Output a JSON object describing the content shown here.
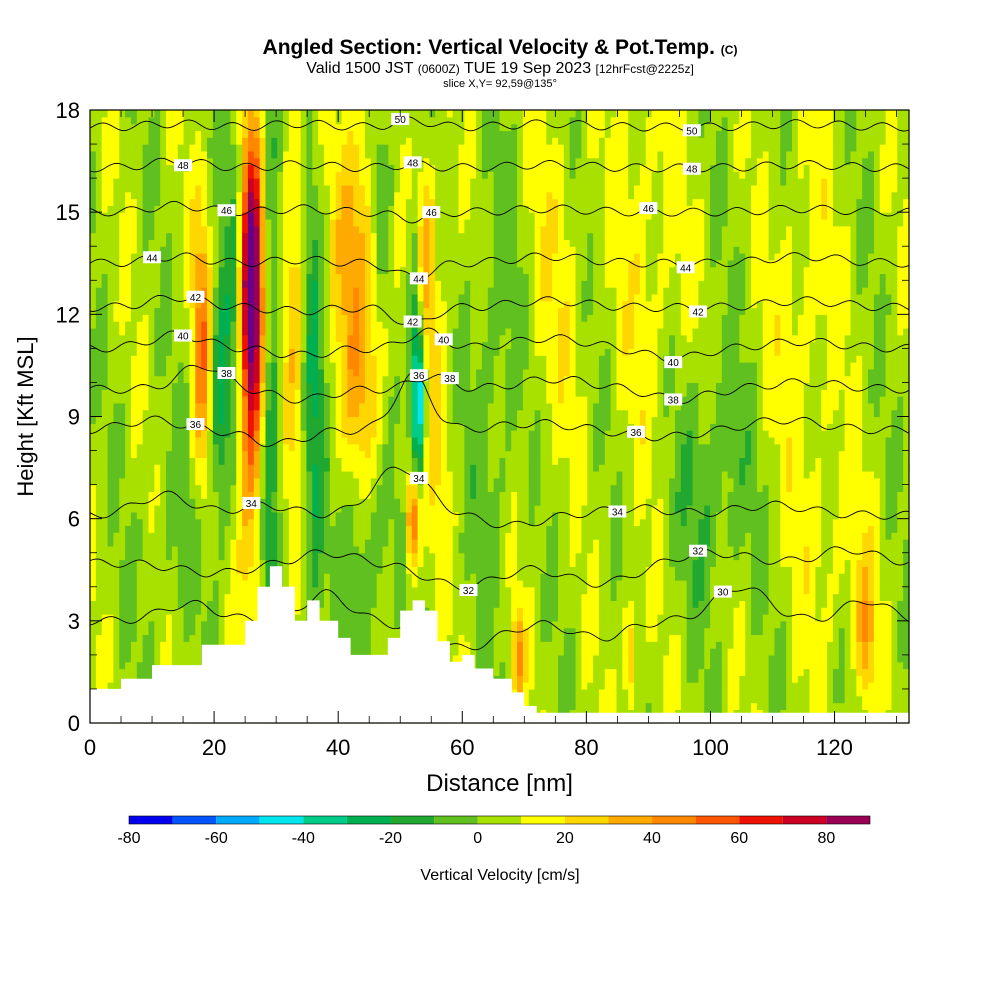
{
  "header": {
    "title": "Angled Section: Vertical Velocity & Pot.Temp.",
    "title_tag": "(C)",
    "valid_prefix": "Valid 1500 JST",
    "valid_utc": "(0600Z)",
    "valid_date": "TUE 19 Sep 2023",
    "forecast_info": "[12hrFcst@2225z]",
    "slice_info": "slice X,Y= 92,59@135°"
  },
  "chart_data": {
    "type": "heatmap",
    "xlabel": "Distance [nm]",
    "ylabel": "Height [Kft MSL]",
    "xlim": [
      0,
      132
    ],
    "ylim": [
      0,
      18
    ],
    "x_ticks": [
      0,
      20,
      40,
      60,
      80,
      100,
      120
    ],
    "y_ticks": [
      0,
      3,
      6,
      9,
      12,
      15,
      18
    ],
    "colorbar": {
      "label": "Vertical Velocity [cm/s]",
      "boundaries": [
        -80,
        -70,
        -60,
        -50,
        -40,
        -30,
        -20,
        -10,
        0,
        10,
        20,
        30,
        40,
        50,
        60,
        70,
        80,
        90
      ],
      "tick_labels": [
        -80,
        -60,
        -40,
        -20,
        0,
        20,
        40,
        60,
        80
      ],
      "colors": [
        "#0000ee",
        "#0055ff",
        "#00aaff",
        "#00e5ee",
        "#00cc88",
        "#00b050",
        "#20a830",
        "#60c020",
        "#a8e000",
        "#ffff00",
        "#ffd700",
        "#ffaa00",
        "#ff8800",
        "#ff5500",
        "#ee1100",
        "#cc0022",
        "#990055",
        "#660088"
      ]
    },
    "background_value": 5,
    "velocity_features": [
      {
        "center_x": 26,
        "center_y": 13.0,
        "width_x": 1.8,
        "height_y": 4.0,
        "value": 75
      },
      {
        "center_x": 26,
        "center_y": 10.0,
        "width_x": 2.5,
        "height_y": 6.0,
        "value": 45
      },
      {
        "center_x": 18,
        "center_y": 11.0,
        "width_x": 1.5,
        "height_y": 4.0,
        "value": 40
      },
      {
        "center_x": 21,
        "center_y": 9.5,
        "width_x": 1.5,
        "height_y": 3.5,
        "value": -35
      },
      {
        "center_x": 23.5,
        "center_y": 12.0,
        "width_x": 1.5,
        "height_y": 6.0,
        "value": -25
      },
      {
        "center_x": 29,
        "center_y": 10.0,
        "width_x": 1.8,
        "height_y": 8.0,
        "value": -30
      },
      {
        "center_x": 33,
        "center_y": 13.0,
        "width_x": 2.0,
        "height_y": 6.0,
        "value": 25
      },
      {
        "center_x": 36,
        "center_y": 9.0,
        "width_x": 1.8,
        "height_y": 9.0,
        "value": -25
      },
      {
        "center_x": 43,
        "center_y": 14.5,
        "width_x": 3.5,
        "height_y": 4.0,
        "value": 30
      },
      {
        "center_x": 44,
        "center_y": 10.0,
        "width_x": 4.0,
        "height_y": 3.0,
        "value": 20
      },
      {
        "center_x": 47,
        "center_y": 16.0,
        "width_x": 1.8,
        "height_y": 3.0,
        "value": -20
      },
      {
        "center_x": 53,
        "center_y": 9.5,
        "width_x": 1.0,
        "height_y": 2.2,
        "value": -50
      },
      {
        "center_x": 52.5,
        "center_y": 11.5,
        "width_x": 1.2,
        "height_y": 3.5,
        "value": -30
      },
      {
        "center_x": 52,
        "center_y": 6.0,
        "width_x": 1.0,
        "height_y": 1.5,
        "value": 55
      },
      {
        "center_x": 54,
        "center_y": 14.0,
        "width_x": 1.5,
        "height_y": 3.0,
        "value": 30
      },
      {
        "center_x": 56,
        "center_y": 10.0,
        "width_x": 2.5,
        "height_y": 5.0,
        "value": 15
      },
      {
        "center_x": 65,
        "center_y": 10.0,
        "width_x": 4.0,
        "height_y": 6.0,
        "value": -12
      },
      {
        "center_x": 75,
        "center_y": 13.0,
        "width_x": 5.0,
        "height_y": 5.0,
        "value": 10
      },
      {
        "center_x": 90,
        "center_y": 14.0,
        "width_x": 5.0,
        "height_y": 6.0,
        "value": 12
      },
      {
        "center_x": 100,
        "center_y": 7.0,
        "width_x": 6.0,
        "height_y": 3.5,
        "value": -15
      },
      {
        "center_x": 115,
        "center_y": 12.0,
        "width_x": 5.0,
        "height_y": 5.0,
        "value": 12
      },
      {
        "center_x": 13,
        "center_y": 5.0,
        "width_x": 5.0,
        "height_y": 3.0,
        "value": -8
      },
      {
        "center_x": 45,
        "center_y": 5.0,
        "width_x": 4.0,
        "height_y": 3.0,
        "value": -15
      },
      {
        "center_x": 69,
        "center_y": 2.0,
        "width_x": 1.0,
        "height_y": 1.5,
        "value": 35
      },
      {
        "center_x": 125,
        "center_y": 2.5,
        "width_x": 1.5,
        "height_y": 2.0,
        "value": 30
      },
      {
        "center_x": 87,
        "center_y": 2.0,
        "width_x": 1.0,
        "height_y": 1.5,
        "value": 35
      },
      {
        "center_x": 120,
        "center_y": 5.0,
        "width_x": 6.0,
        "height_y": 3.0,
        "value": 10
      }
    ],
    "terrain": [
      {
        "x": 0,
        "height": 1.0
      },
      {
        "x": 5,
        "height": 1.3
      },
      {
        "x": 10,
        "height": 1.7
      },
      {
        "x": 14,
        "height": 1.7
      },
      {
        "x": 18,
        "height": 2.3
      },
      {
        "x": 22,
        "height": 2.3
      },
      {
        "x": 25,
        "height": 3.0
      },
      {
        "x": 27,
        "height": 4.0
      },
      {
        "x": 29,
        "height": 4.6
      },
      {
        "x": 31,
        "height": 4.0
      },
      {
        "x": 33,
        "height": 3.0
      },
      {
        "x": 35,
        "height": 3.6
      },
      {
        "x": 37,
        "height": 3.0
      },
      {
        "x": 40,
        "height": 2.5
      },
      {
        "x": 42,
        "height": 2.0
      },
      {
        "x": 45,
        "height": 2.0
      },
      {
        "x": 48,
        "height": 2.5
      },
      {
        "x": 50,
        "height": 3.3
      },
      {
        "x": 52,
        "height": 3.6
      },
      {
        "x": 54,
        "height": 3.3
      },
      {
        "x": 56,
        "height": 2.4
      },
      {
        "x": 58,
        "height": 1.8
      },
      {
        "x": 60,
        "height": 2.0
      },
      {
        "x": 62,
        "height": 1.6
      },
      {
        "x": 65,
        "height": 1.3
      },
      {
        "x": 68,
        "height": 0.9
      },
      {
        "x": 70,
        "height": 0.5
      },
      {
        "x": 72,
        "height": 0.3
      },
      {
        "x": 132,
        "height": 0.3
      }
    ],
    "theta_contours": [
      {
        "level": 30,
        "base_height": 3.0,
        "hills": [
          [
            16,
            6,
            0.5
          ],
          [
            38,
            5,
            0.8
          ],
          [
            60,
            8,
            -0.8
          ],
          [
            82,
            6,
            -0.5
          ],
          [
            105,
            6,
            1.0
          ],
          [
            125,
            5,
            0.6
          ]
        ],
        "label_at": [
          [
            102,
            1.4
          ]
        ]
      },
      {
        "level": 32,
        "base_height": 4.7,
        "hills": [
          [
            20,
            8,
            -0.3
          ],
          [
            38,
            6,
            0.3
          ],
          [
            60,
            8,
            -0.7
          ],
          [
            82,
            8,
            -0.6
          ],
          [
            100,
            8,
            0.3
          ],
          [
            122,
            6,
            0.4
          ]
        ],
        "label_at": [
          [
            61,
            4.3
          ],
          [
            98,
            5.7
          ]
        ]
      },
      {
        "level": 34,
        "base_height": 6.1,
        "hills": [
          [
            12,
            6,
            0.6
          ],
          [
            28,
            6,
            0.3
          ],
          [
            50,
            6,
            1.4
          ],
          [
            68,
            6,
            -0.3
          ],
          [
            88,
            8,
            0.2
          ],
          [
            110,
            8,
            0.3
          ]
        ],
        "label_at": [
          [
            26,
            7.3
          ],
          [
            53,
            7.3
          ],
          [
            85,
            5.7
          ]
        ]
      },
      {
        "level": 36,
        "base_height": 8.6,
        "hills": [
          [
            10,
            6,
            0.3
          ],
          [
            30,
            6,
            -0.4
          ],
          [
            52,
            4,
            1.6
          ],
          [
            72,
            8,
            0.2
          ],
          [
            92,
            8,
            -0.2
          ],
          [
            112,
            8,
            0.3
          ]
        ],
        "label_at": [
          [
            17,
            9.0
          ],
          [
            53,
            8.5
          ],
          [
            88,
            8.4
          ]
        ]
      },
      {
        "level": 38,
        "base_height": 9.8,
        "hills": [
          [
            18,
            5,
            0.7
          ],
          [
            34,
            6,
            -0.3
          ],
          [
            55,
            4,
            0.4
          ],
          [
            75,
            8,
            0.3
          ],
          [
            95,
            6,
            -0.3
          ],
          [
            115,
            8,
            0.2
          ]
        ],
        "label_at": [
          [
            22,
            10.3
          ],
          [
            58,
            10.0
          ],
          [
            94,
            9.3
          ]
        ]
      },
      {
        "level": 40,
        "base_height": 11.0,
        "hills": [
          [
            14,
            6,
            0.4
          ],
          [
            34,
            6,
            -0.2
          ],
          [
            54,
            4,
            0.5
          ],
          [
            74,
            8,
            0.3
          ],
          [
            94,
            6,
            -0.3
          ],
          [
            115,
            8,
            0.2
          ]
        ],
        "label_at": [
          [
            15,
            11.7
          ],
          [
            57,
            11.0
          ],
          [
            94,
            10.8
          ]
        ]
      },
      {
        "level": 42,
        "base_height": 12.2,
        "hills": [
          [
            14,
            6,
            0.3
          ],
          [
            34,
            6,
            -0.1
          ],
          [
            52,
            4,
            -0.5
          ],
          [
            74,
            8,
            0.2
          ],
          [
            96,
            6,
            0.0
          ],
          [
            115,
            8,
            0.2
          ]
        ],
        "label_at": [
          [
            17,
            12.8
          ],
          [
            52,
            12.4
          ],
          [
            98,
            12.1
          ]
        ]
      },
      {
        "level": 44,
        "base_height": 13.5,
        "hills": [
          [
            14,
            6,
            0.2
          ],
          [
            34,
            6,
            0.1
          ],
          [
            52,
            4,
            -0.4
          ],
          [
            74,
            8,
            0.2
          ],
          [
            96,
            6,
            0.0
          ],
          [
            115,
            8,
            0.2
          ]
        ],
        "label_at": [
          [
            10,
            14.0
          ],
          [
            53,
            13.8
          ],
          [
            96,
            13.4
          ]
        ]
      },
      {
        "level": 46,
        "base_height": 15.0,
        "hills": [
          [
            14,
            6,
            0.2
          ],
          [
            34,
            6,
            0.1
          ],
          [
            52,
            4,
            -0.2
          ],
          [
            74,
            8,
            0.1
          ],
          [
            96,
            6,
            0.0
          ],
          [
            115,
            8,
            0.1
          ]
        ],
        "label_at": [
          [
            22,
            15.3
          ],
          [
            55,
            15.2
          ],
          [
            90,
            15.0
          ]
        ]
      },
      {
        "level": 48,
        "base_height": 16.3,
        "hills": [
          [
            14,
            6,
            0.2
          ],
          [
            34,
            6,
            0.1
          ],
          [
            52,
            4,
            0.1
          ],
          [
            74,
            8,
            0.1
          ],
          [
            96,
            6,
            0.0
          ],
          [
            115,
            8,
            0.1
          ]
        ],
        "label_at": [
          [
            15,
            16.8
          ],
          [
            52,
            16.7
          ],
          [
            97,
            16.4
          ]
        ]
      },
      {
        "level": 50,
        "base_height": 17.5,
        "hills": [
          [
            14,
            6,
            0.1
          ],
          [
            34,
            6,
            0.1
          ],
          [
            52,
            4,
            0.2
          ],
          [
            74,
            8,
            0.1
          ],
          [
            96,
            6,
            0.0
          ],
          [
            115,
            8,
            0.1
          ]
        ],
        "label_at": [
          [
            50,
            17.9
          ],
          [
            97,
            17.4
          ]
        ]
      }
    ]
  }
}
